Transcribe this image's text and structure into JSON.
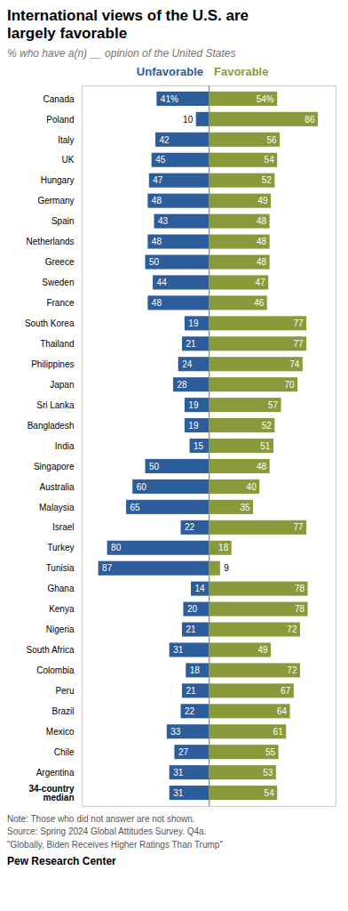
{
  "chart_data": {
    "type": "bar",
    "orientation": "horizontal",
    "title": "International views of the U.S. are\nlargely favorable",
    "subtitle": "% who have a(n) __ opinion of the United States",
    "categories": [
      "Canada",
      "Poland",
      "Italy",
      "UK",
      "Hungary",
      "Germany",
      "Spain",
      "Netherlands",
      "Greece",
      "Sweden",
      "France",
      "South Korea",
      "Thailand",
      "Philippines",
      "Japan",
      "Sri Lanka",
      "Bangladesh",
      "India",
      "Singapore",
      "Australia",
      "Malaysia",
      "Israel",
      "Turkey",
      "Tunisia",
      "Ghana",
      "Kenya",
      "Nigeria",
      "South Africa",
      "Colombia",
      "Peru",
      "Brazil",
      "Mexico",
      "Chile",
      "Argentina",
      "34-country\nmedian"
    ],
    "series": [
      {
        "name": "Unfavorable",
        "color": "#2E5D9B",
        "values": [
          41,
          10,
          42,
          45,
          47,
          48,
          43,
          48,
          50,
          44,
          48,
          19,
          21,
          24,
          28,
          19,
          19,
          15,
          50,
          60,
          65,
          22,
          80,
          87,
          14,
          20,
          21,
          31,
          18,
          21,
          22,
          33,
          27,
          31,
          31
        ],
        "value_labels": [
          "41%",
          "10",
          "42",
          "45",
          "47",
          "48",
          "43",
          "48",
          "50",
          "44",
          "48",
          "19",
          "21",
          "24",
          "28",
          "19",
          "19",
          "15",
          "50",
          "60",
          "65",
          "22",
          "80",
          "87",
          "14",
          "20",
          "21",
          "31",
          "18",
          "21",
          "22",
          "33",
          "27",
          "31",
          "31"
        ]
      },
      {
        "name": "Favorable",
        "color": "#8A9A3B",
        "values": [
          54,
          86,
          56,
          54,
          52,
          49,
          48,
          48,
          48,
          47,
          46,
          77,
          77,
          74,
          70,
          57,
          52,
          51,
          48,
          40,
          35,
          77,
          18,
          9,
          78,
          78,
          72,
          49,
          72,
          67,
          64,
          61,
          55,
          53,
          54
        ],
        "value_labels": [
          "54%",
          "86",
          "56",
          "54",
          "52",
          "49",
          "48",
          "48",
          "48",
          "47",
          "46",
          "77",
          "77",
          "74",
          "70",
          "57",
          "52",
          "51",
          "48",
          "40",
          "35",
          "77",
          "18",
          "9",
          "78",
          "78",
          "72",
          "49",
          "72",
          "67",
          "64",
          "61",
          "55",
          "53",
          "54"
        ]
      }
    ],
    "xlim": [
      0,
      100
    ],
    "xticks": [],
    "data_labels": true,
    "tick_labels": "y",
    "grid": false,
    "legend": "top",
    "annotations": [
      "Note: Those who did not answer are not shown.\nSource: Spring 2024 Global Attitudes Survey. Q4a.\n\"Globally, Biden Receives Higher Ratings Than Trump\"",
      "Pew Research Center"
    ]
  }
}
